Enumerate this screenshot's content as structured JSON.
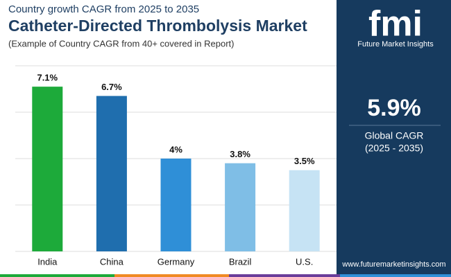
{
  "chart_data": {
    "type": "bar",
    "subtitle": "Country growth CAGR from 2025 to 2035",
    "title": "Catheter-Directed Thrombolysis Market",
    "note": "(Example of Country CAGR from 40+ covered in Report)",
    "categories": [
      "India",
      "China",
      "Germany",
      "Brazil",
      "U.S."
    ],
    "values": [
      7.1,
      6.7,
      4,
      3.8,
      3.5
    ],
    "value_labels": [
      "7.1%",
      "6.7%",
      "4%",
      "3.8%",
      "3.5%"
    ],
    "colors": [
      "#1daa3a",
      "#1f6eae",
      "#2f8fd7",
      "#7fbee6",
      "#c6e3f4"
    ],
    "ylim": [
      0,
      8
    ],
    "yticks": [
      0,
      2,
      4,
      6,
      8
    ],
    "grid": true
  },
  "sidebar": {
    "logo": "fmi",
    "brand": "Future Market Insights",
    "cagr": "5.9%",
    "cagr_label": "Global CAGR",
    "cagr_period": "(2025 - 2035)",
    "website": "www.futuremarketinsights.com"
  }
}
